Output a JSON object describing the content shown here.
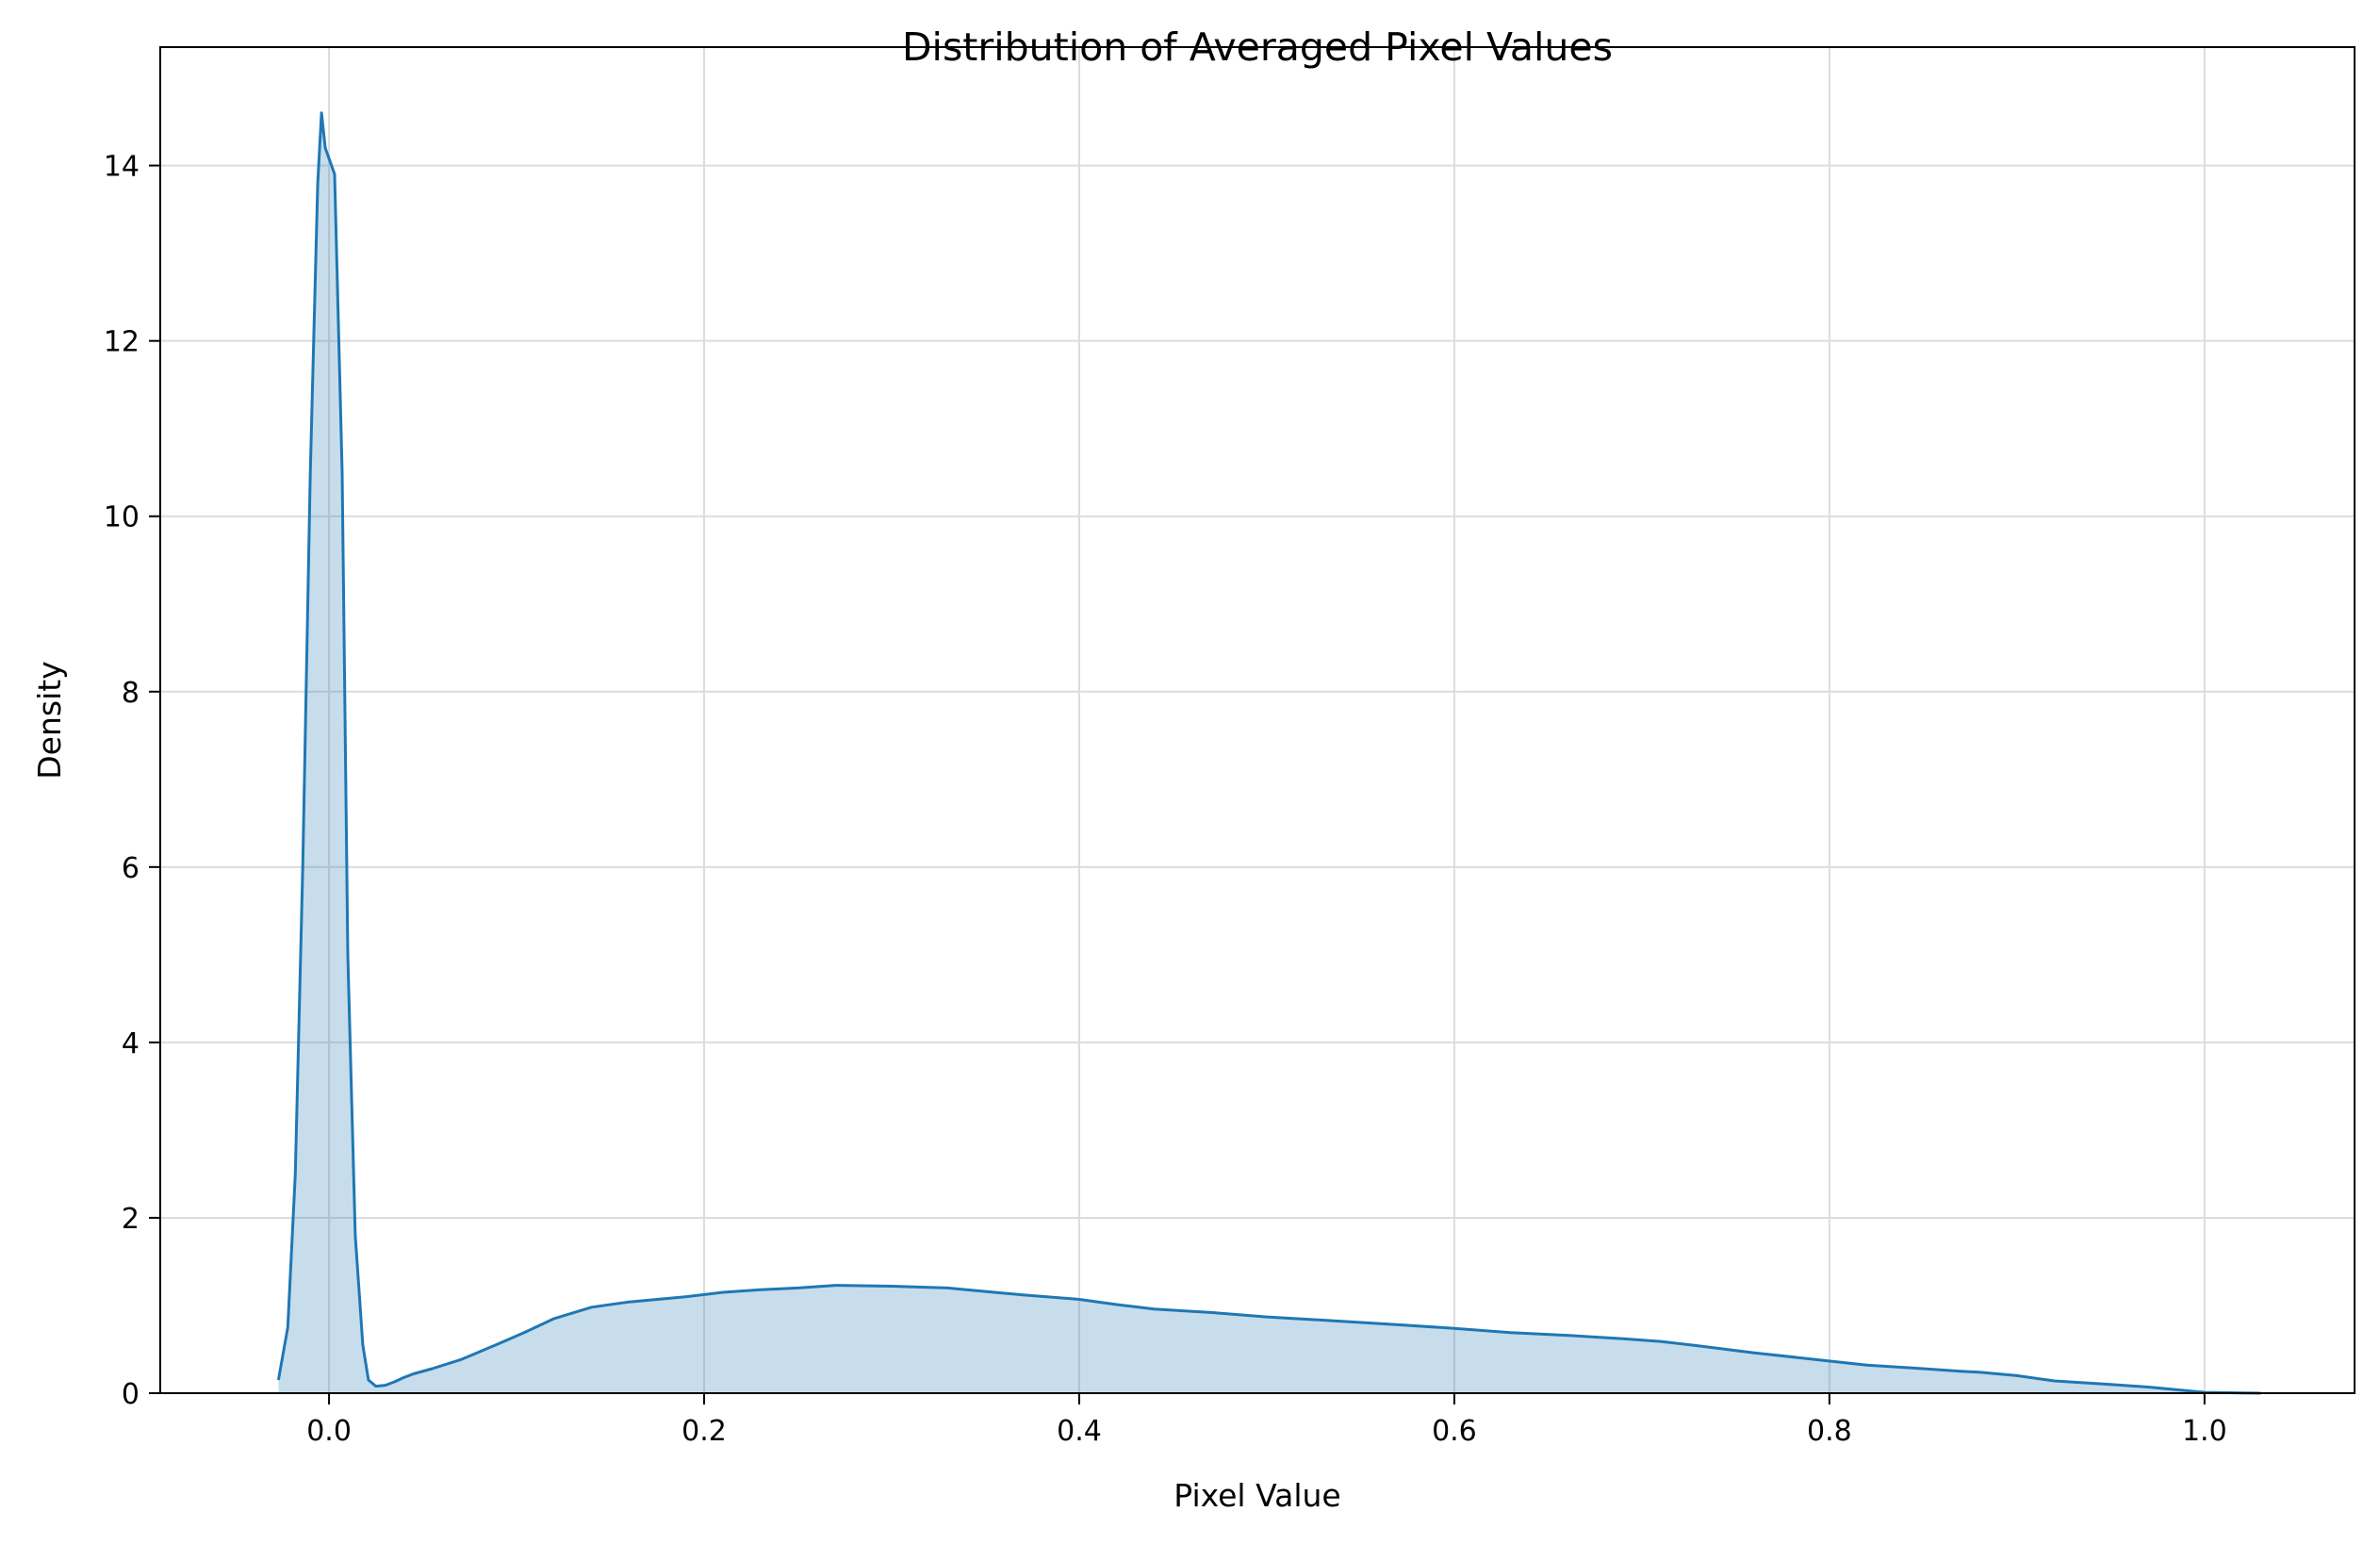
{
  "chart_data": {
    "type": "area",
    "title": "Distribution of Averaged Pixel Values",
    "xlabel": "Pixel Value",
    "ylabel": "Density",
    "xlim": [
      -0.09,
      1.08
    ],
    "ylim": [
      0,
      15.35
    ],
    "xticks": [
      0.0,
      0.2,
      0.4,
      0.6,
      0.8,
      1.0
    ],
    "xtick_labels": [
      "0.0",
      "0.2",
      "0.4",
      "0.6",
      "0.8",
      "1.0"
    ],
    "yticks": [
      0,
      2,
      4,
      6,
      8,
      10,
      12,
      14
    ],
    "ytick_labels": [
      "0",
      "2",
      "4",
      "6",
      "8",
      "10",
      "12",
      "14"
    ],
    "grid": true,
    "series": [
      {
        "color": "#1f77b4",
        "fill_color": "#1f77b4",
        "fill_opacity": 0.25,
        "x": [
          -0.027,
          -0.022,
          -0.018,
          -0.014,
          -0.01,
          -0.006,
          -0.004,
          -0.002,
          0.003,
          0.007,
          0.01,
          0.014,
          0.018,
          0.021,
          0.025,
          0.03,
          0.035,
          0.04,
          0.045,
          0.055,
          0.07,
          0.09,
          0.105,
          0.12,
          0.14,
          0.16,
          0.175,
          0.19,
          0.21,
          0.23,
          0.25,
          0.27,
          0.3,
          0.33,
          0.35,
          0.37,
          0.4,
          0.42,
          0.44,
          0.47,
          0.5,
          0.54,
          0.57,
          0.6,
          0.63,
          0.66,
          0.69,
          0.71,
          0.73,
          0.76,
          0.79,
          0.82,
          0.85,
          0.87,
          0.88,
          0.9,
          0.92,
          0.95,
          0.97,
          0.99,
          1.0,
          1.02,
          1.03
        ],
        "y": [
          0.15,
          0.75,
          2.5,
          6.0,
          10.5,
          13.8,
          14.6,
          14.2,
          13.9,
          10.5,
          5.0,
          1.8,
          0.55,
          0.15,
          0.08,
          0.09,
          0.13,
          0.18,
          0.22,
          0.28,
          0.38,
          0.56,
          0.7,
          0.85,
          0.98,
          1.04,
          1.07,
          1.1,
          1.15,
          1.18,
          1.2,
          1.23,
          1.22,
          1.2,
          1.16,
          1.12,
          1.07,
          1.01,
          0.96,
          0.92,
          0.87,
          0.82,
          0.78,
          0.74,
          0.69,
          0.66,
          0.62,
          0.59,
          0.54,
          0.46,
          0.39,
          0.32,
          0.28,
          0.25,
          0.24,
          0.2,
          0.14,
          0.1,
          0.07,
          0.03,
          0.01,
          0.003,
          0.0
        ]
      }
    ]
  }
}
